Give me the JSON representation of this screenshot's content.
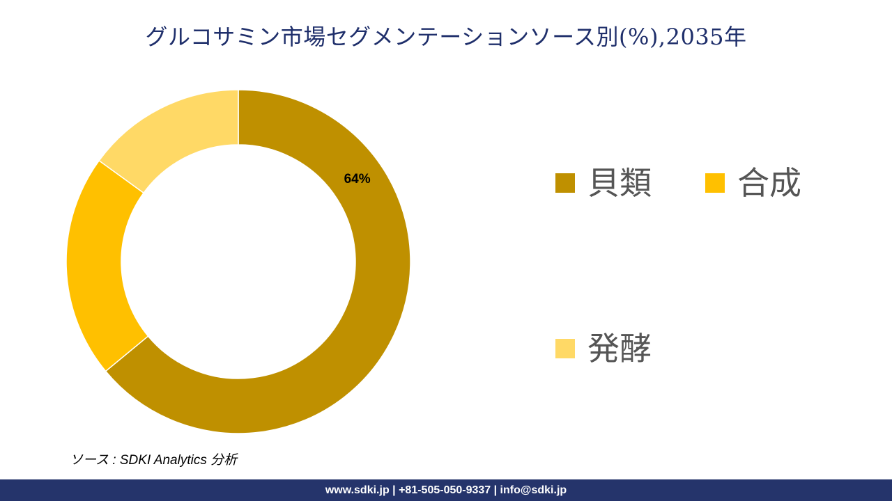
{
  "title": "グルコサミン市場セグメンテーションソース別(%),2035年",
  "source_note": "ソース : SDKI Analytics 分析",
  "footer_text": "www.sdki.jp | +81-505-050-9337 | info@sdki.jp",
  "chart_data": {
    "type": "pie",
    "style": "donut",
    "categories": [
      "貝類",
      "合成",
      "発酵"
    ],
    "values": [
      64,
      21,
      15
    ],
    "colors": [
      "#bf9000",
      "#ffc000",
      "#ffd966"
    ],
    "data_labels": [
      "64%",
      "",
      ""
    ],
    "legend": {
      "position": "right",
      "items": [
        {
          "label": "貝類",
          "color": "#bf9000"
        },
        {
          "label": "合成",
          "color": "#ffc000"
        },
        {
          "label": "発酵",
          "color": "#ffd966"
        }
      ]
    }
  }
}
